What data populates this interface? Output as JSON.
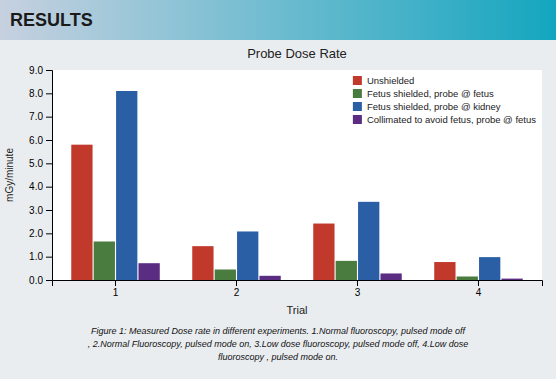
{
  "chart_data": {
    "type": "bar",
    "title": "Probe Dose Rate",
    "x_label": "Trial",
    "y_label": "mGy/minute",
    "categories": [
      "1",
      "2",
      "3",
      "4"
    ],
    "series": [
      {
        "name": "Unshielded",
        "color": "#c0392b",
        "values": [
          5.8,
          1.45,
          2.42,
          0.77
        ]
      },
      {
        "name": "Fetus shielded, probe @ fetus",
        "color": "#4a7c3f",
        "values": [
          1.65,
          0.45,
          0.82,
          0.15
        ]
      },
      {
        "name": "Fetus shielded, probe @ kidney",
        "color": "#2a5fa5",
        "values": [
          8.1,
          2.08,
          3.35,
          0.98
        ]
      },
      {
        "name": "Collimated to avoid fetus, probe @ fetus",
        "color": "#5b2d82",
        "values": [
          0.72,
          0.18,
          0.28,
          0.06
        ]
      }
    ],
    "ylim": [
      0,
      9.0
    ],
    "yticks": [
      {
        "value": 0,
        "label": "0.0"
      },
      {
        "value": 1,
        "label": "1.0"
      },
      {
        "value": 2,
        "label": "2.0"
      },
      {
        "value": 3,
        "label": "3.0"
      },
      {
        "value": 4,
        "label": "4.0"
      },
      {
        "value": 5,
        "label": "5.0"
      },
      {
        "value": 6,
        "label": "6.0"
      },
      {
        "value": 7,
        "label": "7.0"
      },
      {
        "value": 8,
        "label": "8.0"
      },
      {
        "value": 9,
        "label": "9.0"
      }
    ],
    "grid": false,
    "legend": "upper right",
    "annotations": [
      "RESULTS",
      "Figure 1: Measured Dose rate in different experiments. 1.Normal fluoroscopy, pulsed mode off\n, 2.Normal Fluoroscopy, pulsed mode on, 3.Low dose fluoroscopy, pulsed mode off, 4.Low dose\nfluoroscopy , pulsed mode on."
    ]
  }
}
